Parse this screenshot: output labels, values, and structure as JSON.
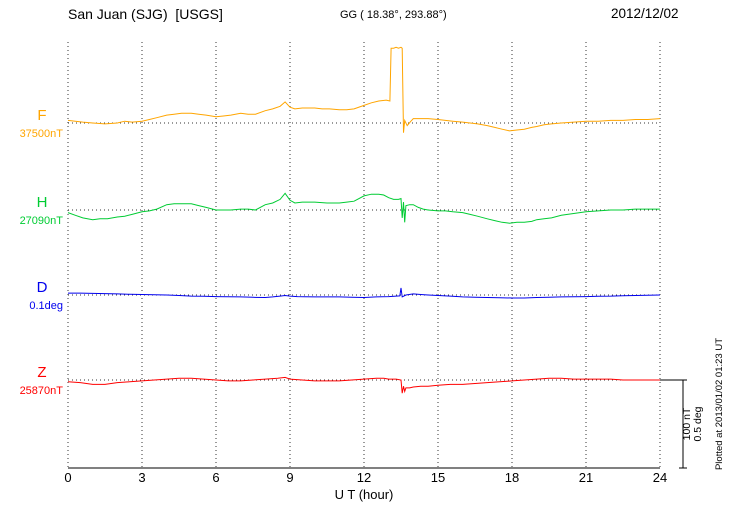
{
  "header": {
    "station": "San Juan (SJG)  [USGS]",
    "coords": "GG ( 18.38°, 293.88°)",
    "date": "2012/12/02"
  },
  "annotations": {
    "scale_nt": "100 nT",
    "scale_deg": "0.5 deg",
    "plotted_at": "Plotted at 2013/01/02 01:23 UT"
  },
  "chart_data": {
    "type": "line",
    "title": "San Juan (SJG)  [USGS]",
    "subtitle": "GG ( 18.38°, 293.88°)",
    "date": "2012/12/02",
    "xlabel": "U T (hour)",
    "x_range": [
      0,
      24
    ],
    "x_ticks": [
      0,
      3,
      6,
      9,
      12,
      15,
      18,
      21,
      24
    ],
    "grid": "dotted-vertical",
    "scale": {
      "nT": 100,
      "deg": 0.5
    },
    "series": [
      {
        "name": "F",
        "baseline_label": "37500nT",
        "baseline_value": 37500,
        "unit": "nT",
        "color": "#FFA500",
        "points": [
          [
            0,
            3
          ],
          [
            0.3,
            2
          ],
          [
            0.6,
            1
          ],
          [
            1,
            0
          ],
          [
            1.5,
            -1
          ],
          [
            2,
            0
          ],
          [
            2.3,
            2
          ],
          [
            2.6,
            1
          ],
          [
            3,
            2
          ],
          [
            3.3,
            4
          ],
          [
            3.6,
            6
          ],
          [
            4,
            9
          ],
          [
            4.3,
            10
          ],
          [
            4.6,
            11
          ],
          [
            5,
            11
          ],
          [
            5.3,
            10
          ],
          [
            5.6,
            9
          ],
          [
            6,
            7
          ],
          [
            6.3,
            8
          ],
          [
            6.6,
            9
          ],
          [
            7,
            11
          ],
          [
            7.3,
            10
          ],
          [
            7.6,
            10
          ],
          [
            8,
            14
          ],
          [
            8.3,
            16
          ],
          [
            8.6,
            19
          ],
          [
            8.8,
            24
          ],
          [
            9,
            18
          ],
          [
            9.2,
            16
          ],
          [
            9.5,
            17
          ],
          [
            9.8,
            17
          ],
          [
            10,
            17
          ],
          [
            10.3,
            16
          ],
          [
            10.6,
            16
          ],
          [
            11,
            15
          ],
          [
            11.3,
            15
          ],
          [
            11.6,
            16
          ],
          [
            12,
            20
          ],
          [
            12.3,
            23
          ],
          [
            12.6,
            25
          ],
          [
            12.9,
            26
          ],
          [
            13.05,
            25
          ],
          [
            13.1,
            85
          ],
          [
            13.2,
            85
          ],
          [
            13.3,
            86
          ],
          [
            13.4,
            85
          ],
          [
            13.5,
            86
          ],
          [
            13.55,
            85
          ],
          [
            13.6,
            -11
          ],
          [
            13.65,
            3
          ],
          [
            13.75,
            -3
          ],
          [
            13.9,
            2
          ],
          [
            14,
            5
          ],
          [
            14.3,
            5
          ],
          [
            14.6,
            5
          ],
          [
            15,
            4
          ],
          [
            15.3,
            3
          ],
          [
            15.6,
            2
          ],
          [
            16,
            1
          ],
          [
            16.3,
            0
          ],
          [
            16.6,
            -1
          ],
          [
            17,
            -3
          ],
          [
            17.3,
            -5
          ],
          [
            17.6,
            -7
          ],
          [
            17.9,
            -9
          ],
          [
            18.2,
            -8
          ],
          [
            18.5,
            -7
          ],
          [
            18.8,
            -5
          ],
          [
            19,
            -4
          ],
          [
            19.3,
            -2
          ],
          [
            19.6,
            -1
          ],
          [
            20,
            0
          ],
          [
            20.5,
            1
          ],
          [
            21,
            2
          ],
          [
            21.5,
            2
          ],
          [
            22,
            3
          ],
          [
            22.5,
            3
          ],
          [
            23,
            4
          ],
          [
            23.5,
            4
          ],
          [
            24,
            5
          ]
        ]
      },
      {
        "name": "H",
        "baseline_label": "27090nT",
        "baseline_value": 27090,
        "unit": "nT",
        "color": "#00CC33",
        "points": [
          [
            0,
            -3
          ],
          [
            0.3,
            -6
          ],
          [
            0.6,
            -9
          ],
          [
            1,
            -11
          ],
          [
            1.3,
            -10
          ],
          [
            1.6,
            -10
          ],
          [
            2,
            -8
          ],
          [
            2.3,
            -7
          ],
          [
            2.6,
            -5
          ],
          [
            3,
            -2
          ],
          [
            3.3,
            -1
          ],
          [
            3.6,
            1
          ],
          [
            4,
            6
          ],
          [
            4.3,
            7
          ],
          [
            4.6,
            7
          ],
          [
            5,
            7
          ],
          [
            5.3,
            5
          ],
          [
            5.6,
            3
          ],
          [
            6,
            0
          ],
          [
            6.3,
            0
          ],
          [
            6.6,
            0
          ],
          [
            7,
            1
          ],
          [
            7.3,
            1
          ],
          [
            7.6,
            0
          ],
          [
            8,
            6
          ],
          [
            8.3,
            8
          ],
          [
            8.6,
            12
          ],
          [
            8.8,
            19
          ],
          [
            9,
            11
          ],
          [
            9.2,
            8
          ],
          [
            9.5,
            9
          ],
          [
            10,
            9
          ],
          [
            10.5,
            8
          ],
          [
            11,
            8
          ],
          [
            11.3,
            9
          ],
          [
            11.6,
            10
          ],
          [
            12,
            16
          ],
          [
            12.3,
            18
          ],
          [
            12.6,
            18
          ],
          [
            12.8,
            17
          ],
          [
            13,
            14
          ],
          [
            13.2,
            12
          ],
          [
            13.4,
            12
          ],
          [
            13.5,
            13
          ],
          [
            13.55,
            -9
          ],
          [
            13.6,
            9
          ],
          [
            13.65,
            -14
          ],
          [
            13.7,
            5
          ],
          [
            13.85,
            6
          ],
          [
            14,
            6
          ],
          [
            14.2,
            3
          ],
          [
            14.4,
            1
          ],
          [
            14.6,
            0
          ],
          [
            15,
            -1
          ],
          [
            15.3,
            -1
          ],
          [
            15.6,
            -2
          ],
          [
            16,
            -3
          ],
          [
            16.3,
            -5
          ],
          [
            16.6,
            -7
          ],
          [
            17,
            -10
          ],
          [
            17.3,
            -12
          ],
          [
            17.6,
            -14
          ],
          [
            17.9,
            -15
          ],
          [
            18.2,
            -14
          ],
          [
            18.5,
            -14
          ],
          [
            18.8,
            -13
          ],
          [
            19,
            -11
          ],
          [
            19.3,
            -10
          ],
          [
            19.6,
            -9
          ],
          [
            20,
            -6
          ],
          [
            20.5,
            -4
          ],
          [
            21,
            -2
          ],
          [
            21.5,
            -1
          ],
          [
            22,
            0
          ],
          [
            22.5,
            0
          ],
          [
            23,
            1
          ],
          [
            23.5,
            1
          ],
          [
            24,
            1
          ]
        ]
      },
      {
        "name": "D",
        "baseline_label": "0.1deg",
        "baseline_value": 0.1,
        "unit": "deg",
        "color": "#0000EE",
        "points": [
          [
            0,
            0.011
          ],
          [
            0.5,
            0.011
          ],
          [
            1,
            0.009
          ],
          [
            1.5,
            0.008
          ],
          [
            2,
            0.006
          ],
          [
            2.5,
            0.004
          ],
          [
            3,
            0.003
          ],
          [
            3.5,
            0.001
          ],
          [
            4,
            0
          ],
          [
            4.5,
            -0.003
          ],
          [
            5,
            -0.006
          ],
          [
            5.5,
            -0.007
          ],
          [
            6,
            -0.009
          ],
          [
            6.5,
            -0.01
          ],
          [
            7,
            -0.011
          ],
          [
            7.5,
            -0.013
          ],
          [
            8,
            -0.014
          ],
          [
            8.3,
            -0.011
          ],
          [
            8.6,
            -0.006
          ],
          [
            8.8,
            -0.003
          ],
          [
            9,
            -0.006
          ],
          [
            9.3,
            -0.009
          ],
          [
            9.6,
            -0.01
          ],
          [
            10,
            -0.011
          ],
          [
            10.5,
            -0.011
          ],
          [
            11,
            -0.011
          ],
          [
            11.5,
            -0.013
          ],
          [
            12,
            -0.014
          ],
          [
            12.5,
            -0.011
          ],
          [
            13,
            -0.009
          ],
          [
            13.3,
            -0.006
          ],
          [
            13.45,
            -0.005
          ],
          [
            13.5,
            0.04
          ],
          [
            13.55,
            -0.011
          ],
          [
            13.7,
            0
          ],
          [
            14,
            0.006
          ],
          [
            14.3,
            0.003
          ],
          [
            14.6,
            0
          ],
          [
            15,
            -0.003
          ],
          [
            15.5,
            -0.006
          ],
          [
            16,
            -0.011
          ],
          [
            16.5,
            -0.013
          ],
          [
            17,
            -0.014
          ],
          [
            17.5,
            -0.016
          ],
          [
            18,
            -0.017
          ],
          [
            18.5,
            -0.017
          ],
          [
            19,
            -0.014
          ],
          [
            19.5,
            -0.013
          ],
          [
            20,
            -0.011
          ],
          [
            20.5,
            -0.01
          ],
          [
            21,
            -0.009
          ],
          [
            21.5,
            -0.007
          ],
          [
            22,
            -0.006
          ],
          [
            22.5,
            -0.004
          ],
          [
            23,
            -0.003
          ],
          [
            23.5,
            -0.001
          ],
          [
            24,
            0
          ]
        ]
      },
      {
        "name": "Z",
        "baseline_label": "25870nT",
        "baseline_value": 25870,
        "unit": "nT",
        "color": "#FF0000",
        "points": [
          [
            0,
            -2
          ],
          [
            0.5,
            -3
          ],
          [
            1,
            -5
          ],
          [
            1.5,
            -5
          ],
          [
            2,
            -3
          ],
          [
            2.5,
            -2
          ],
          [
            3,
            -1
          ],
          [
            3.5,
            0
          ],
          [
            4,
            1
          ],
          [
            4.5,
            2
          ],
          [
            5,
            2
          ],
          [
            5.5,
            1
          ],
          [
            6,
            0
          ],
          [
            6.5,
            -1
          ],
          [
            7,
            -1
          ],
          [
            7.5,
            0
          ],
          [
            8,
            1
          ],
          [
            8.5,
            2
          ],
          [
            8.8,
            3
          ],
          [
            9,
            1
          ],
          [
            9.5,
            0
          ],
          [
            10,
            -1
          ],
          [
            10.5,
            -1
          ],
          [
            11,
            -1
          ],
          [
            11.5,
            0
          ],
          [
            12,
            1
          ],
          [
            12.5,
            2
          ],
          [
            12.8,
            2
          ],
          [
            13,
            1
          ],
          [
            13.3,
            1
          ],
          [
            13.5,
            0
          ],
          [
            13.55,
            -15
          ],
          [
            13.6,
            -7
          ],
          [
            13.65,
            -13
          ],
          [
            13.7,
            -9
          ],
          [
            13.85,
            -9
          ],
          [
            14,
            -8
          ],
          [
            14.3,
            -7
          ],
          [
            14.6,
            -7
          ],
          [
            15,
            -6
          ],
          [
            15.5,
            -5
          ],
          [
            16,
            -5
          ],
          [
            16.5,
            -4
          ],
          [
            17,
            -3
          ],
          [
            17.5,
            -2
          ],
          [
            18,
            -1
          ],
          [
            18.5,
            0
          ],
          [
            19,
            1
          ],
          [
            19.5,
            2
          ],
          [
            20,
            2
          ],
          [
            20.5,
            1
          ],
          [
            21,
            1
          ],
          [
            21.5,
            1
          ],
          [
            22,
            1
          ],
          [
            22.5,
            0
          ],
          [
            23,
            0
          ],
          [
            23.5,
            0
          ],
          [
            24,
            0
          ]
        ]
      }
    ]
  }
}
